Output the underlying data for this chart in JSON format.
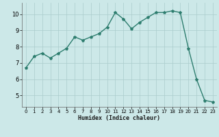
{
  "x": [
    0,
    1,
    2,
    3,
    4,
    5,
    6,
    7,
    8,
    9,
    10,
    11,
    12,
    13,
    14,
    15,
    16,
    17,
    18,
    19,
    20,
    21,
    22,
    23
  ],
  "y": [
    6.7,
    7.4,
    7.6,
    7.3,
    7.6,
    7.9,
    8.6,
    8.4,
    8.6,
    8.8,
    9.2,
    10.1,
    9.7,
    9.1,
    9.5,
    9.8,
    10.1,
    10.1,
    10.2,
    10.1,
    7.9,
    6.0,
    4.7,
    4.6
  ],
  "xlabel": "Humidex (Indice chaleur)",
  "ylim": [
    4.3,
    10.7
  ],
  "xlim": [
    -0.5,
    23.5
  ],
  "yticks": [
    5,
    6,
    7,
    8,
    9,
    10
  ],
  "xticks": [
    0,
    1,
    2,
    3,
    4,
    5,
    6,
    7,
    8,
    9,
    10,
    11,
    12,
    13,
    14,
    15,
    16,
    17,
    18,
    19,
    20,
    21,
    22,
    23
  ],
  "line_color": "#2d7d6e",
  "bg_color": "#cce8e8",
  "grid_color": "#aacccc",
  "marker": "*",
  "marker_size": 3,
  "line_width": 1.0
}
